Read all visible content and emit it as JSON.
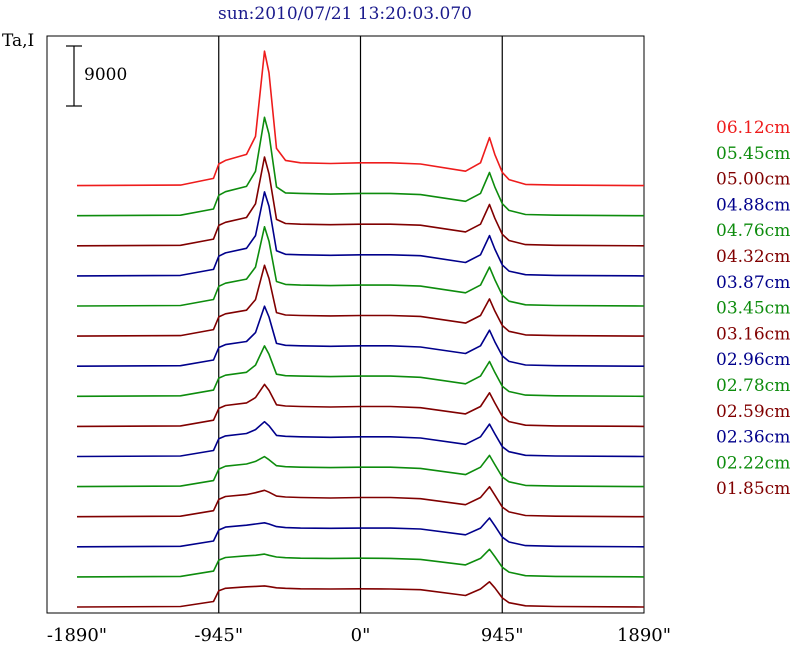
{
  "chart_data": {
    "type": "line",
    "title": "sun:2010/07/21 13:20:03.070",
    "ylabel": "Ta,I",
    "xlabel": "",
    "scale_bar_label": "9000",
    "scale_bar_value": 9000,
    "xlim": [
      -2090,
      1890
    ],
    "x_ticks": [
      {
        "value": -1890,
        "label": "-1890\""
      },
      {
        "value": -945,
        "label": "-945\""
      },
      {
        "value": 0,
        "label": "0\""
      },
      {
        "value": 945,
        "label": "945\""
      },
      {
        "value": 1890,
        "label": "1890\""
      }
    ],
    "vertical_lines": [
      -945,
      0,
      945
    ],
    "profile_x": [
      -1890,
      -1200,
      -980,
      -945,
      -900,
      -760,
      -700,
      -640,
      -610,
      -560,
      -500,
      -400,
      -200,
      0,
      200,
      400,
      700,
      800,
      860,
      895,
      945,
      990,
      1100,
      1300,
      1890
    ],
    "series": [
      {
        "name": "06.12cm",
        "color": "#ee1c1c",
        "base": 0.05,
        "values": [
          0,
          0.02,
          0.3,
          0.9,
          1.05,
          1.3,
          2.05,
          5.6,
          4.7,
          1.55,
          1.05,
          0.95,
          0.92,
          0.95,
          0.95,
          0.9,
          0.6,
          0.95,
          2.0,
          1.3,
          0.55,
          0.25,
          0.05,
          0.02,
          0
        ]
      },
      {
        "name": "05.45cm",
        "color": "#0d8c0d",
        "base": 0.1,
        "values": [
          0,
          0.02,
          0.28,
          0.85,
          1.0,
          1.22,
          1.85,
          4.1,
          3.4,
          1.2,
          0.95,
          0.93,
          0.9,
          0.93,
          0.93,
          0.88,
          0.6,
          0.93,
          1.8,
          1.2,
          0.5,
          0.22,
          0.05,
          0.02,
          0
        ]
      },
      {
        "name": "05.00cm",
        "color": "#800000",
        "base": 0.1,
        "values": [
          0,
          0.02,
          0.28,
          0.85,
          0.98,
          1.18,
          1.75,
          3.7,
          3.0,
          1.1,
          0.93,
          0.9,
          0.88,
          0.9,
          0.9,
          0.86,
          0.58,
          0.9,
          1.72,
          1.15,
          0.48,
          0.22,
          0.05,
          0.02,
          0
        ]
      },
      {
        "name": "04.88cm",
        "color": "#00008b",
        "base": 0.05,
        "values": [
          0,
          0.02,
          0.27,
          0.82,
          0.96,
          1.15,
          1.68,
          3.5,
          2.9,
          1.05,
          0.9,
          0.88,
          0.86,
          0.88,
          0.88,
          0.84,
          0.56,
          0.88,
          1.68,
          1.12,
          0.46,
          0.2,
          0.05,
          0.02,
          0
        ]
      },
      {
        "name": "04.76cm",
        "color": "#0d8c0d",
        "base": 0.05,
        "values": [
          0,
          0.02,
          0.27,
          0.82,
          0.95,
          1.12,
          1.62,
          3.3,
          2.7,
          1.02,
          0.9,
          0.87,
          0.85,
          0.87,
          0.87,
          0.83,
          0.55,
          0.87,
          1.62,
          1.1,
          0.45,
          0.2,
          0.05,
          0.02,
          0
        ]
      },
      {
        "name": "04.32cm",
        "color": "#800000",
        "base": 0.05,
        "values": [
          0,
          0.02,
          0.27,
          0.8,
          0.93,
          1.08,
          1.52,
          2.95,
          2.4,
          0.98,
          0.88,
          0.86,
          0.84,
          0.86,
          0.86,
          0.82,
          0.54,
          0.86,
          1.55,
          1.05,
          0.44,
          0.2,
          0.05,
          0.02,
          0
        ]
      },
      {
        "name": "03.87cm",
        "color": "#00008b",
        "base": 0.05,
        "values": [
          0,
          0.02,
          0.26,
          0.78,
          0.9,
          1.03,
          1.4,
          2.5,
          2.05,
          0.95,
          0.87,
          0.85,
          0.83,
          0.85,
          0.85,
          0.8,
          0.53,
          0.85,
          1.5,
          1.02,
          0.43,
          0.2,
          0.05,
          0.02,
          0
        ]
      },
      {
        "name": "03.45cm",
        "color": "#0d8c0d",
        "base": 0.05,
        "values": [
          0,
          0.02,
          0.26,
          0.76,
          0.88,
          1.0,
          1.3,
          2.1,
          1.75,
          0.92,
          0.86,
          0.84,
          0.82,
          0.84,
          0.84,
          0.79,
          0.52,
          0.84,
          1.45,
          1.0,
          0.42,
          0.2,
          0.05,
          0.02,
          0
        ]
      },
      {
        "name": "03.16cm",
        "color": "#800000",
        "base": 0.05,
        "values": [
          0,
          0.02,
          0.26,
          0.75,
          0.87,
          0.98,
          1.2,
          1.75,
          1.5,
          0.9,
          0.85,
          0.83,
          0.81,
          0.83,
          0.83,
          0.78,
          0.52,
          0.83,
          1.4,
          0.98,
          0.42,
          0.2,
          0.05,
          0.02,
          0
        ]
      },
      {
        "name": "02.96cm",
        "color": "#00008b",
        "base": 0.05,
        "values": [
          0,
          0.02,
          0.25,
          0.74,
          0.86,
          0.96,
          1.12,
          1.45,
          1.28,
          0.88,
          0.84,
          0.82,
          0.8,
          0.82,
          0.82,
          0.77,
          0.51,
          0.82,
          1.35,
          0.95,
          0.41,
          0.2,
          0.05,
          0.02,
          0
        ]
      },
      {
        "name": "02.78cm",
        "color": "#0d8c0d",
        "base": 0.05,
        "values": [
          0,
          0.02,
          0.25,
          0.73,
          0.85,
          0.94,
          1.05,
          1.25,
          1.12,
          0.87,
          0.83,
          0.81,
          0.79,
          0.81,
          0.81,
          0.76,
          0.5,
          0.81,
          1.3,
          0.92,
          0.4,
          0.2,
          0.05,
          0.02,
          0
        ]
      },
      {
        "name": "02.59cm",
        "color": "#800000",
        "base": 0.05,
        "values": [
          0,
          0.02,
          0.25,
          0.72,
          0.84,
          0.92,
          1.0,
          1.1,
          1.02,
          0.86,
          0.82,
          0.8,
          0.78,
          0.8,
          0.8,
          0.75,
          0.5,
          0.8,
          1.25,
          0.9,
          0.4,
          0.2,
          0.05,
          0.02,
          0
        ]
      },
      {
        "name": "02.36cm",
        "color": "#00008b",
        "base": 0.05,
        "values": [
          0,
          0.02,
          0.24,
          0.7,
          0.82,
          0.9,
          0.95,
          1.0,
          0.95,
          0.84,
          0.8,
          0.78,
          0.77,
          0.78,
          0.78,
          0.74,
          0.5,
          0.78,
          1.2,
          0.88,
          0.4,
          0.2,
          0.05,
          0.02,
          0
        ]
      },
      {
        "name": "02.22cm",
        "color": "#0d8c0d",
        "base": 0.05,
        "values": [
          0,
          0.02,
          0.24,
          0.7,
          0.81,
          0.88,
          0.9,
          0.95,
          0.9,
          0.83,
          0.8,
          0.78,
          0.77,
          0.78,
          0.77,
          0.73,
          0.5,
          0.77,
          1.15,
          0.85,
          0.4,
          0.2,
          0.05,
          0.02,
          0
        ]
      },
      {
        "name": "01.85cm",
        "color": "#800000",
        "base": 0.03,
        "values": [
          0,
          0.02,
          0.23,
          0.68,
          0.78,
          0.84,
          0.86,
          0.88,
          0.85,
          0.8,
          0.78,
          0.76,
          0.75,
          0.76,
          0.75,
          0.72,
          0.48,
          0.75,
          1.05,
          0.8,
          0.38,
          0.18,
          0.05,
          0.02,
          0
        ]
      }
    ]
  }
}
